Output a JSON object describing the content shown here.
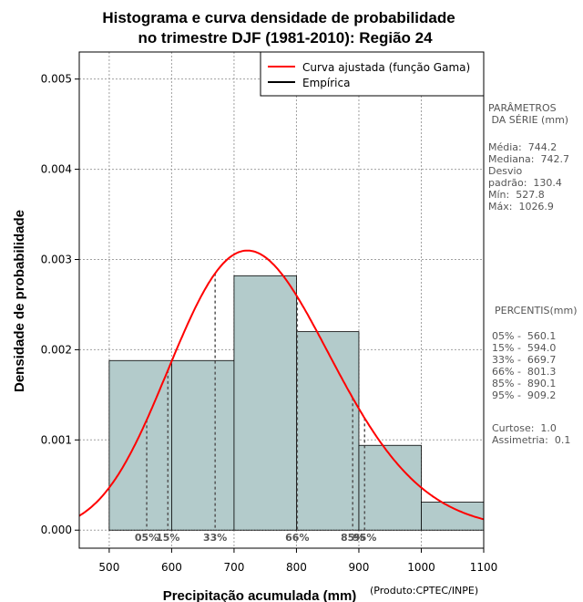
{
  "chart_data": {
    "type": "bar",
    "title_line1": "Histograma e curva densidade de probabilidade",
    "title_line2": "no trimestre DJF (1981-2010): Região 24",
    "xlabel": "Precipitação acumulada (mm)",
    "ylabel": "Densidade de probabilidade",
    "xlim": [
      452,
      1100
    ],
    "ylim": [
      -0.0002,
      0.0053
    ],
    "x_ticks": [
      500,
      600,
      700,
      800,
      900,
      1000,
      1100
    ],
    "y_ticks": [
      0.0,
      0.001,
      0.002,
      0.003,
      0.004,
      0.005
    ],
    "y_tick_labels": [
      "0.000",
      "0.001",
      "0.002",
      "0.003",
      "0.004",
      "0.005"
    ],
    "bins": [
      {
        "x0": 500,
        "x1": 600,
        "density": 0.00188
      },
      {
        "x0": 600,
        "x1": 700,
        "density": 0.00188
      },
      {
        "x0": 700,
        "x1": 800,
        "density": 0.00282
      },
      {
        "x0": 800,
        "x1": 900,
        "density": 0.0022
      },
      {
        "x0": 900,
        "x1": 1000,
        "density": 0.00094
      },
      {
        "x0": 1000,
        "x1": 1100,
        "density": 0.00031
      }
    ],
    "gamma_fit": {
      "mean": 744.2,
      "sd": 130.4
    },
    "legend": [
      {
        "label": "Curva ajustada (função Gama)",
        "color": "#ff0000"
      },
      {
        "label": "Empírica",
        "color": "#000000"
      }
    ],
    "percentile_lines": [
      {
        "label": "05%",
        "x": 560.1
      },
      {
        "label": "15%",
        "x": 594.0
      },
      {
        "label": "33%",
        "x": 669.7
      },
      {
        "label": "66%",
        "x": 801.3
      },
      {
        "label": "85%",
        "x": 890.1
      },
      {
        "label": "95%",
        "x": 909.2
      }
    ],
    "colors": {
      "bar_fill": "#b3cbcb",
      "curve": "#ff0000",
      "grid": "#a0a0a0"
    }
  },
  "side_panel": {
    "params_title": "PARÂMETROS\n DA SÉRIE (mm)",
    "params_values": "Média:  744.2\nMediana:  742.7\nDesvio\npadrão:  130.4\nMín:  527.8\nMáx:  1026.9",
    "percentis_title": "PERCENTIS(mm)",
    "percentis_values": "05% -  560.1\n15% -  594.0\n33% -  669.7\n66% -  801.3\n85% -  890.1\n95% -  909.2",
    "stats": "Curtose:  1.0\nAssimetria:  0.1"
  },
  "credit": "(Produto:CPTEC/INPE)"
}
